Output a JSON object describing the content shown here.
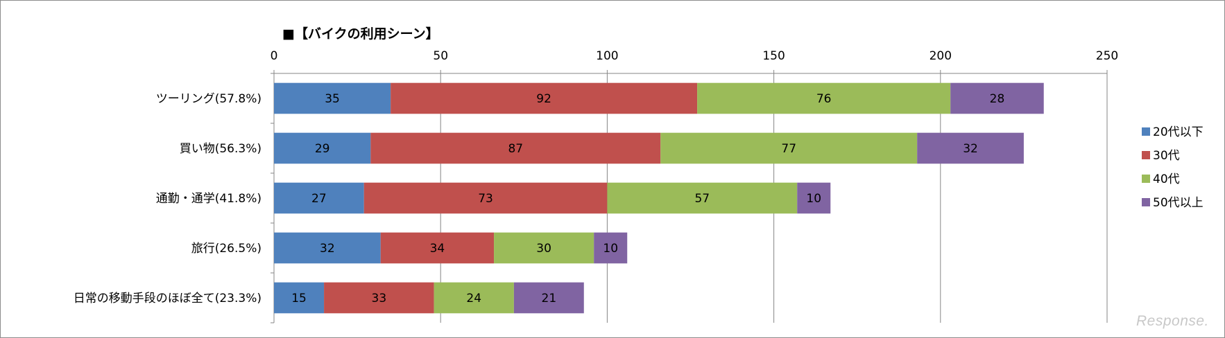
{
  "chart_data": {
    "type": "bar",
    "orientation": "horizontal",
    "stacked": true,
    "title": "■【バイクの利用シーン】",
    "categories": [
      "ツーリング(57.8%)",
      "買い物(56.3%)",
      "通勤・通学(41.8%)",
      "旅行(26.5%)",
      "日常の移動手段のほぼ全て(23.3%)"
    ],
    "series": [
      {
        "name": "20代以下",
        "color": "#4f81bd",
        "values": [
          35,
          29,
          27,
          32,
          15
        ]
      },
      {
        "name": "30代",
        "color": "#c0504d",
        "values": [
          92,
          87,
          73,
          34,
          33
        ]
      },
      {
        "name": "40代",
        "color": "#9bbb59",
        "values": [
          76,
          77,
          57,
          30,
          24
        ]
      },
      {
        "name": "50代以上",
        "color": "#8064a2",
        "values": [
          28,
          32,
          10,
          10,
          21
        ]
      }
    ],
    "xlim": [
      0,
      250
    ],
    "xticks": [
      0,
      50,
      100,
      150,
      200,
      250
    ],
    "xaxis_position": "top",
    "grid": true,
    "legend_position": "right"
  },
  "watermark": "Response."
}
